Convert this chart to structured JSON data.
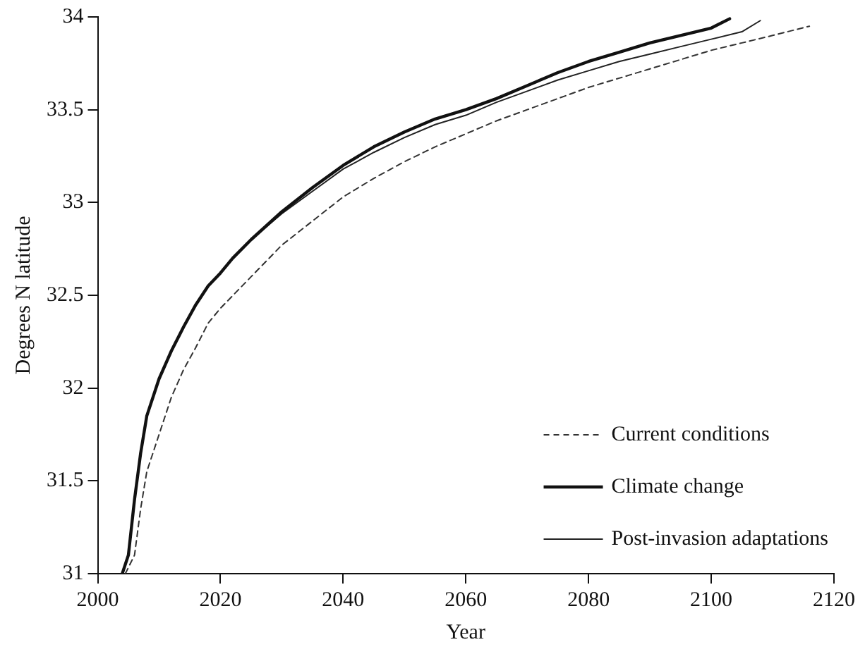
{
  "chart_data": {
    "type": "line",
    "xlabel": "Year",
    "ylabel": "Degrees N latitude",
    "xlim": [
      2000,
      2120
    ],
    "xticks": [
      2000,
      2020,
      2040,
      2060,
      2080,
      2100,
      2120
    ],
    "ylim": [
      31,
      34
    ],
    "yticks": [
      31,
      31.5,
      32,
      32.5,
      33,
      33.5,
      34
    ],
    "grid": false,
    "legend": "bottom right",
    "marker": "none",
    "series": [
      {
        "name": "Current conditions",
        "color": "#333333",
        "line_style": "dashed",
        "x": [
          2004.5,
          2006,
          2007,
          2008,
          2010,
          2012,
          2014,
          2016,
          2018,
          2020,
          2025,
          2030,
          2035,
          2040,
          2045,
          2050,
          2055,
          2060,
          2065,
          2070,
          2075,
          2080,
          2085,
          2090,
          2095,
          2100,
          2105,
          2110,
          2116
        ],
        "values": [
          31,
          31.1,
          31.35,
          31.55,
          31.75,
          31.95,
          32.1,
          32.22,
          32.35,
          32.43,
          32.6,
          32.77,
          32.9,
          33.03,
          33.13,
          33.22,
          33.3,
          33.37,
          33.44,
          33.5,
          33.56,
          33.62,
          33.67,
          33.72,
          33.77,
          33.82,
          33.86,
          33.9,
          33.95
        ]
      },
      {
        "name": "Climate change",
        "color": "#111111",
        "line_style": "solid",
        "x": [
          2004,
          2005,
          2006,
          2007,
          2008,
          2010,
          2012,
          2014,
          2016,
          2018,
          2020,
          2022,
          2025,
          2030,
          2035,
          2040,
          2045,
          2050,
          2055,
          2060,
          2065,
          2070,
          2075,
          2080,
          2085,
          2090,
          2095,
          2100,
          2103
        ],
        "values": [
          31,
          31.1,
          31.4,
          31.65,
          31.85,
          32.05,
          32.2,
          32.33,
          32.45,
          32.55,
          32.62,
          32.7,
          32.8,
          32.95,
          33.08,
          33.2,
          33.3,
          33.38,
          33.45,
          33.5,
          33.56,
          33.63,
          33.7,
          33.76,
          33.81,
          33.86,
          33.9,
          33.94,
          33.99
        ]
      },
      {
        "name": "Post-invasion adaptations",
        "color": "#222222",
        "line_style": "solid",
        "x": [
          2004,
          2005,
          2006,
          2007,
          2008,
          2010,
          2012,
          2014,
          2016,
          2018,
          2020,
          2022,
          2025,
          2030,
          2035,
          2040,
          2045,
          2050,
          2055,
          2060,
          2065,
          2070,
          2075,
          2080,
          2085,
          2090,
          2095,
          2100,
          2105,
          2108
        ],
        "values": [
          31,
          31.1,
          31.4,
          31.65,
          31.85,
          32.05,
          32.2,
          32.33,
          32.45,
          32.55,
          32.62,
          32.7,
          32.8,
          32.94,
          33.06,
          33.18,
          33.27,
          33.35,
          33.42,
          33.47,
          33.54,
          33.6,
          33.66,
          33.71,
          33.76,
          33.8,
          33.84,
          33.88,
          33.92,
          33.98
        ]
      }
    ]
  }
}
